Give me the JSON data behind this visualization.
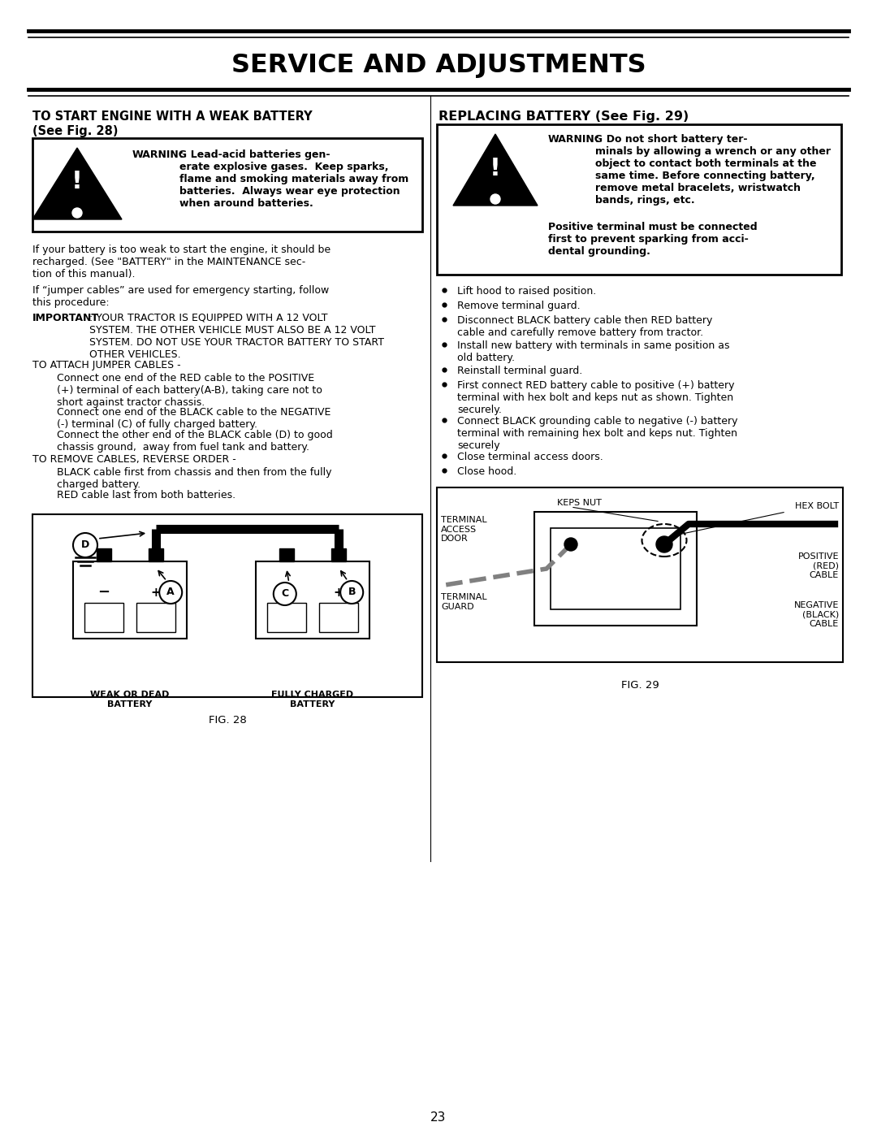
{
  "page_title": "SERVICE AND ADJUSTMENTS",
  "page_number": "23",
  "bg_color": "#ffffff",
  "warning1_text_bold": "WARNING",
  "warning1_text_rest": ":  Lead-acid batteries gen-\nerate explosive gases.  Keep sparks,\nflame and smoking materials away from\nbatteries.  Always wear eye protection\nwhen around batteries.",
  "warning2_text_bold": "WARNING",
  "warning2_text_rest": ":  Do not short battery ter-\nminals by allowing a wrench or any other\nobject to contact both terminals at the\nsame time. Before connecting battery,\nremove metal bracelets, wristwatch\nbands, rings, etc.",
  "warning2_text_bold2": "Positive terminal must be connected\nfirst to prevent sparking from acci-\ndental grounding.",
  "para1": "If your battery is too weak to start the engine, it should be\nrecharged. (See \"BATTERY\" in the MAINTENANCE sec-\ntion of this manual).",
  "para2": "If “jumper cables” are used for emergency starting, follow\nthis procedure:",
  "important_label": "IMPORTANT",
  "important_rest": ": YOUR TRACTOR IS EQUIPPED WITH A 12 VOLT\nSYSTEM. THE OTHER VEHICLE MUST ALSO BE A 12 VOLT\nSYSTEM. DO NOT USE YOUR TRACTOR BATTERY TO START\nOTHER VEHICLES.",
  "attach_header": "TO ATTACH JUMPER CABLES -",
  "attach1": "Connect one end of the RED cable to the POSITIVE\n(+) terminal of each battery(A-B), taking care not to\nshort against tractor chassis.",
  "attach2": "Connect one end of the BLACK cable to the NEGATIVE\n(-) terminal (C) of fully charged battery.",
  "attach3": "Connect the other end of the BLACK cable (D) to good\nchassis ground,  away from fuel tank and battery.",
  "remove_header": "TO REMOVE CABLES, REVERSE ORDER -",
  "remove1": "BLACK cable first from chassis and then from the fully\ncharged battery.",
  "remove2": "RED cable last from both batteries.",
  "right_bullets": [
    "Lift hood to raised position.",
    "Remove terminal guard.",
    "Disconnect BLACK battery cable then RED battery\ncable and carefully remove battery from tractor.",
    "Install new battery with terminals in same position as\nold battery.",
    "Reinstall terminal guard.",
    "First connect RED battery cable to positive (+) battery\nterminal with hex bolt and keps nut as shown. Tighten\nsecurely.",
    "Connect BLACK grounding cable to negative (-) battery\nterminal with remaining hex bolt and keps nut. Tighten\nsecurely",
    "Close terminal access doors.",
    "Close hood."
  ],
  "fig28_caption": "FIG. 28",
  "fig29_caption": "FIG. 29",
  "keps_nut": "KEPS NUT",
  "hex_bolt": "HEX BOLT",
  "terminal_access_door": "TERMINAL\nACCESS\nDOOR",
  "positive_cable": "POSITIVE\n(RED)\nCABLE",
  "terminal_guard": "TERMINAL\nGUARD",
  "negative_cable": "NEGATIVE\n(BLACK)\nCABLE"
}
